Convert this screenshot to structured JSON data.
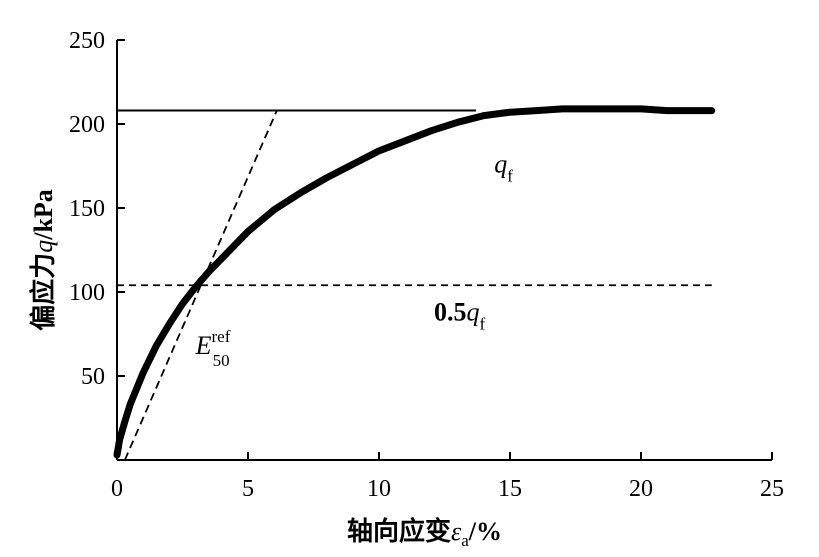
{
  "chart_data": {
    "type": "line",
    "title": "",
    "xlabel": "轴向应变ε_a/%",
    "xlabel_prefix": "轴向应变",
    "xlabel_symbol": "ε",
    "xlabel_sub": "a",
    "xlabel_suffix": "/%",
    "ylabel": "偏应力q/kPa",
    "ylabel_prefix": "偏应力",
    "ylabel_symbol": "q",
    "ylabel_suffix": "/kPa",
    "xlim": [
      0,
      25
    ],
    "ylim": [
      0,
      250
    ],
    "xticks": [
      0,
      5,
      10,
      15,
      20,
      25
    ],
    "yticks": [
      50,
      100,
      150,
      200,
      250
    ],
    "x_tick_labels": [
      "0",
      "5",
      "10",
      "15",
      "20",
      "25"
    ],
    "y_tick_labels": [
      "50",
      "100",
      "150",
      "200",
      "250"
    ],
    "grid": false,
    "series": [
      {
        "role": "measured-curve",
        "x": [
          0,
          0.1,
          0.3,
          0.5,
          1,
          1.5,
          2,
          2.5,
          3,
          3.5,
          4,
          5,
          6,
          7,
          8,
          9,
          10,
          11,
          12,
          13,
          14,
          15,
          16,
          17,
          18,
          19,
          20,
          21,
          22,
          22.7
        ],
        "y": [
          3,
          12,
          23,
          33,
          52,
          68,
          81,
          93,
          103,
          112,
          120,
          136,
          149,
          159,
          168,
          176,
          184,
          190,
          196,
          201,
          205,
          207,
          208,
          209,
          209,
          209,
          209,
          208,
          208,
          208
        ]
      }
    ],
    "reference_lines": [
      {
        "role": "qf-line",
        "orientation": "horizontal",
        "y": 208,
        "x_range": [
          0,
          13.7
        ],
        "style": "solid"
      },
      {
        "role": "half-qf-line",
        "orientation": "horizontal",
        "y": 104,
        "x_range": [
          0,
          22.7
        ],
        "style": "dashed"
      },
      {
        "role": "e50-secant-line",
        "orientation": "oblique",
        "points": [
          [
            0.3,
            0
          ],
          [
            6.1,
            208
          ]
        ],
        "style": "dashed"
      }
    ],
    "annotations": [
      {
        "role": "qf-label",
        "x": 14.4,
        "y": 171,
        "symbol": "q",
        "subscript": "f"
      },
      {
        "role": "half-qf-label",
        "x": 12.1,
        "y": 83,
        "prefix": "0.5",
        "symbol": "q",
        "subscript": "f"
      },
      {
        "role": "e50-label",
        "x": 3.0,
        "y": 63,
        "symbol": "E",
        "subscript": "50",
        "superscript": "ref"
      }
    ]
  }
}
